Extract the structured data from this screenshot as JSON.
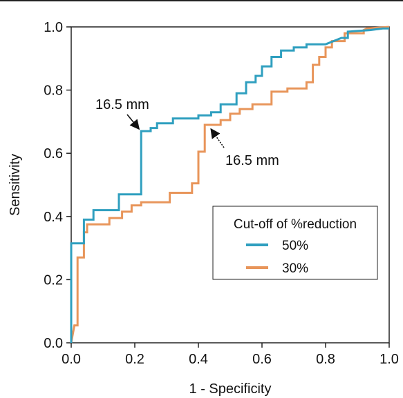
{
  "chart_data": {
    "type": "line",
    "xlabel": "1 - Specificity",
    "ylabel": "Sensitivity",
    "xlim": [
      0,
      1
    ],
    "ylim": [
      0,
      1
    ],
    "xticks": [
      "0.0",
      "0.2",
      "0.4",
      "0.6",
      "0.8",
      "1.0"
    ],
    "yticks": [
      "0.0",
      "0.2",
      "0.4",
      "0.6",
      "0.8",
      "1.0"
    ],
    "grid": false,
    "legend": {
      "title": "Cut-off of %reduction",
      "placement": "center-right"
    },
    "series": [
      {
        "name": "50%",
        "color": "#2f9fbf",
        "points": [
          [
            0,
            0
          ],
          [
            0,
            0.315
          ],
          [
            0.04,
            0.315
          ],
          [
            0.04,
            0.39
          ],
          [
            0.07,
            0.39
          ],
          [
            0.07,
            0.42
          ],
          [
            0.15,
            0.42
          ],
          [
            0.15,
            0.47
          ],
          [
            0.22,
            0.47
          ],
          [
            0.22,
            0.67
          ],
          [
            0.25,
            0.67
          ],
          [
            0.25,
            0.68
          ],
          [
            0.27,
            0.68
          ],
          [
            0.27,
            0.695
          ],
          [
            0.32,
            0.695
          ],
          [
            0.32,
            0.71
          ],
          [
            0.4,
            0.71
          ],
          [
            0.4,
            0.72
          ],
          [
            0.44,
            0.72
          ],
          [
            0.44,
            0.73
          ],
          [
            0.47,
            0.73
          ],
          [
            0.47,
            0.755
          ],
          [
            0.52,
            0.755
          ],
          [
            0.52,
            0.79
          ],
          [
            0.55,
            0.79
          ],
          [
            0.55,
            0.825
          ],
          [
            0.58,
            0.825
          ],
          [
            0.58,
            0.845
          ],
          [
            0.6,
            0.845
          ],
          [
            0.6,
            0.875
          ],
          [
            0.63,
            0.875
          ],
          [
            0.63,
            0.905
          ],
          [
            0.66,
            0.905
          ],
          [
            0.66,
            0.925
          ],
          [
            0.7,
            0.925
          ],
          [
            0.7,
            0.935
          ],
          [
            0.74,
            0.935
          ],
          [
            0.74,
            0.945
          ],
          [
            0.8,
            0.945
          ],
          [
            0.85,
            0.965
          ],
          [
            0.87,
            0.965
          ],
          [
            0.87,
            0.985
          ],
          [
            0.94,
            0.99
          ],
          [
            0.98,
            0.995
          ],
          [
            1,
            0.995
          ]
        ]
      },
      {
        "name": "30%",
        "color": "#e8955a",
        "points": [
          [
            0,
            0
          ],
          [
            0.01,
            0.055
          ],
          [
            0.02,
            0.055
          ],
          [
            0.02,
            0.27
          ],
          [
            0.04,
            0.27
          ],
          [
            0.04,
            0.35
          ],
          [
            0.05,
            0.35
          ],
          [
            0.05,
            0.375
          ],
          [
            0.12,
            0.375
          ],
          [
            0.12,
            0.395
          ],
          [
            0.16,
            0.395
          ],
          [
            0.16,
            0.415
          ],
          [
            0.19,
            0.415
          ],
          [
            0.19,
            0.435
          ],
          [
            0.22,
            0.435
          ],
          [
            0.22,
            0.445
          ],
          [
            0.31,
            0.445
          ],
          [
            0.31,
            0.475
          ],
          [
            0.38,
            0.475
          ],
          [
            0.38,
            0.505
          ],
          [
            0.4,
            0.505
          ],
          [
            0.4,
            0.605
          ],
          [
            0.42,
            0.605
          ],
          [
            0.42,
            0.69
          ],
          [
            0.47,
            0.69
          ],
          [
            0.47,
            0.705
          ],
          [
            0.5,
            0.705
          ],
          [
            0.5,
            0.725
          ],
          [
            0.53,
            0.725
          ],
          [
            0.53,
            0.74
          ],
          [
            0.57,
            0.74
          ],
          [
            0.57,
            0.755
          ],
          [
            0.63,
            0.755
          ],
          [
            0.63,
            0.795
          ],
          [
            0.68,
            0.795
          ],
          [
            0.68,
            0.805
          ],
          [
            0.74,
            0.805
          ],
          [
            0.74,
            0.825
          ],
          [
            0.76,
            0.825
          ],
          [
            0.76,
            0.88
          ],
          [
            0.78,
            0.88
          ],
          [
            0.78,
            0.905
          ],
          [
            0.8,
            0.905
          ],
          [
            0.8,
            0.935
          ],
          [
            0.82,
            0.935
          ],
          [
            0.82,
            0.955
          ],
          [
            0.86,
            0.955
          ],
          [
            0.86,
            0.98
          ],
          [
            0.92,
            0.98
          ],
          [
            0.92,
            0.99
          ],
          [
            0.93,
            0.995
          ],
          [
            1,
            1
          ]
        ]
      }
    ],
    "annotations": [
      {
        "text": "16.5 mm",
        "series": "50%",
        "target": [
          0.22,
          0.67
        ],
        "arrow": "solid"
      },
      {
        "text": "16.5 mm",
        "series": "30%",
        "target": [
          0.42,
          0.69
        ],
        "arrow": "dotted"
      }
    ]
  }
}
